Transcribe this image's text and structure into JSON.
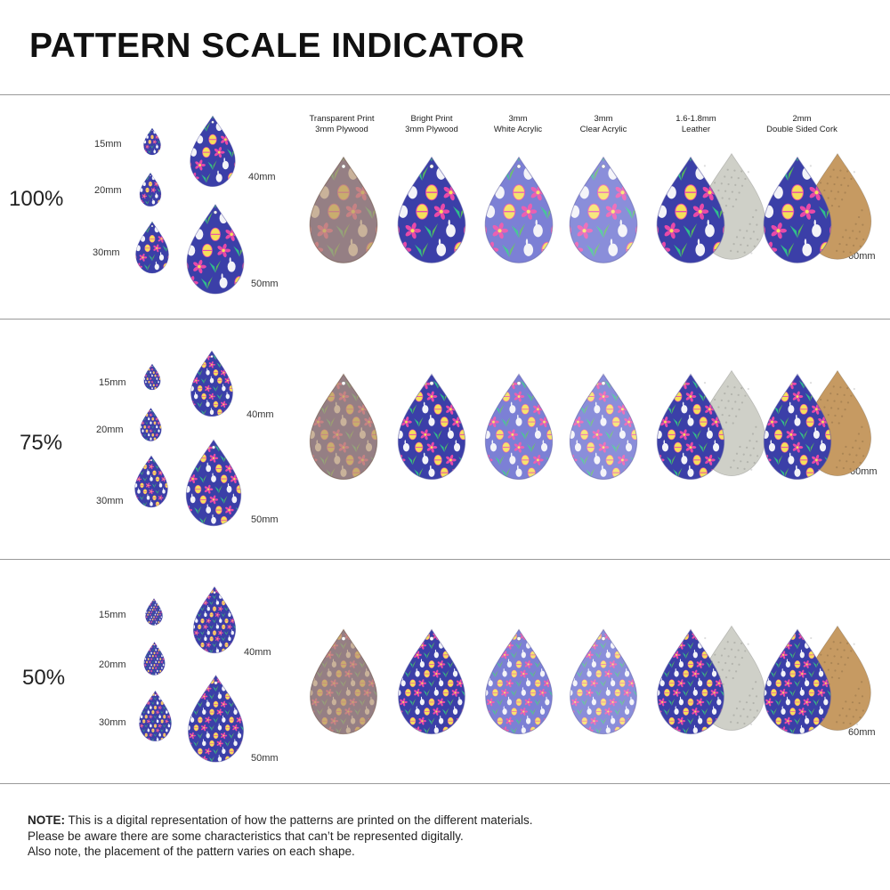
{
  "title": "PATTERN SCALE INDICATOR",
  "materials": [
    {
      "line1": "Transparent Print",
      "line2": "3mm Plywood",
      "variant": "transparent"
    },
    {
      "line1": "Bright Print",
      "line2": "3mm Plywood",
      "variant": "bright"
    },
    {
      "line1": "3mm",
      "line2": "White Acrylic",
      "variant": "white"
    },
    {
      "line1": "3mm",
      "line2": "Clear Acrylic",
      "variant": "clear"
    },
    {
      "line1": "1.6-1.8mm",
      "line2": "Leather",
      "variant": "leather"
    },
    {
      "line1": "2mm",
      "line2": "Double Sided Cork",
      "variant": "cork"
    }
  ],
  "sections": [
    {
      "scale": "100%",
      "sizes": {
        "s15": "15mm",
        "s20": "20mm",
        "s30": "30mm",
        "s40": "40mm",
        "s50": "50mm",
        "s60": "60mm"
      }
    },
    {
      "scale": "75%",
      "sizes": {
        "s15": "15mm",
        "s20": "20mm",
        "s30": "30mm",
        "s40": "40mm",
        "s50": "50mm",
        "s60": "60mm"
      }
    },
    {
      "scale": "50%",
      "sizes": {
        "s15": "15mm",
        "s20": "20mm",
        "s30": "30mm",
        "s40": "40mm",
        "s50": "50mm",
        "s60": "60mm"
      }
    }
  ],
  "note": {
    "label": "NOTE:",
    "line1": " This is a digital representation of how the patterns are printed on the different materials.",
    "line2": "Please be aware there are some characteristics that can’t be represented digitally.",
    "line3": "Also note, the placement of the pattern varies on each shape."
  },
  "colors": {
    "pattern_base": "#3b3fa8",
    "pink": "#e94aa8",
    "green": "#2fbf8c",
    "leaf": "#58b95a",
    "yellow": "#f4e05a",
    "white": "#f3f3f8",
    "wood": "#b89876",
    "leather_back": "#cfd0c8",
    "cork_back": "#c69a62"
  }
}
